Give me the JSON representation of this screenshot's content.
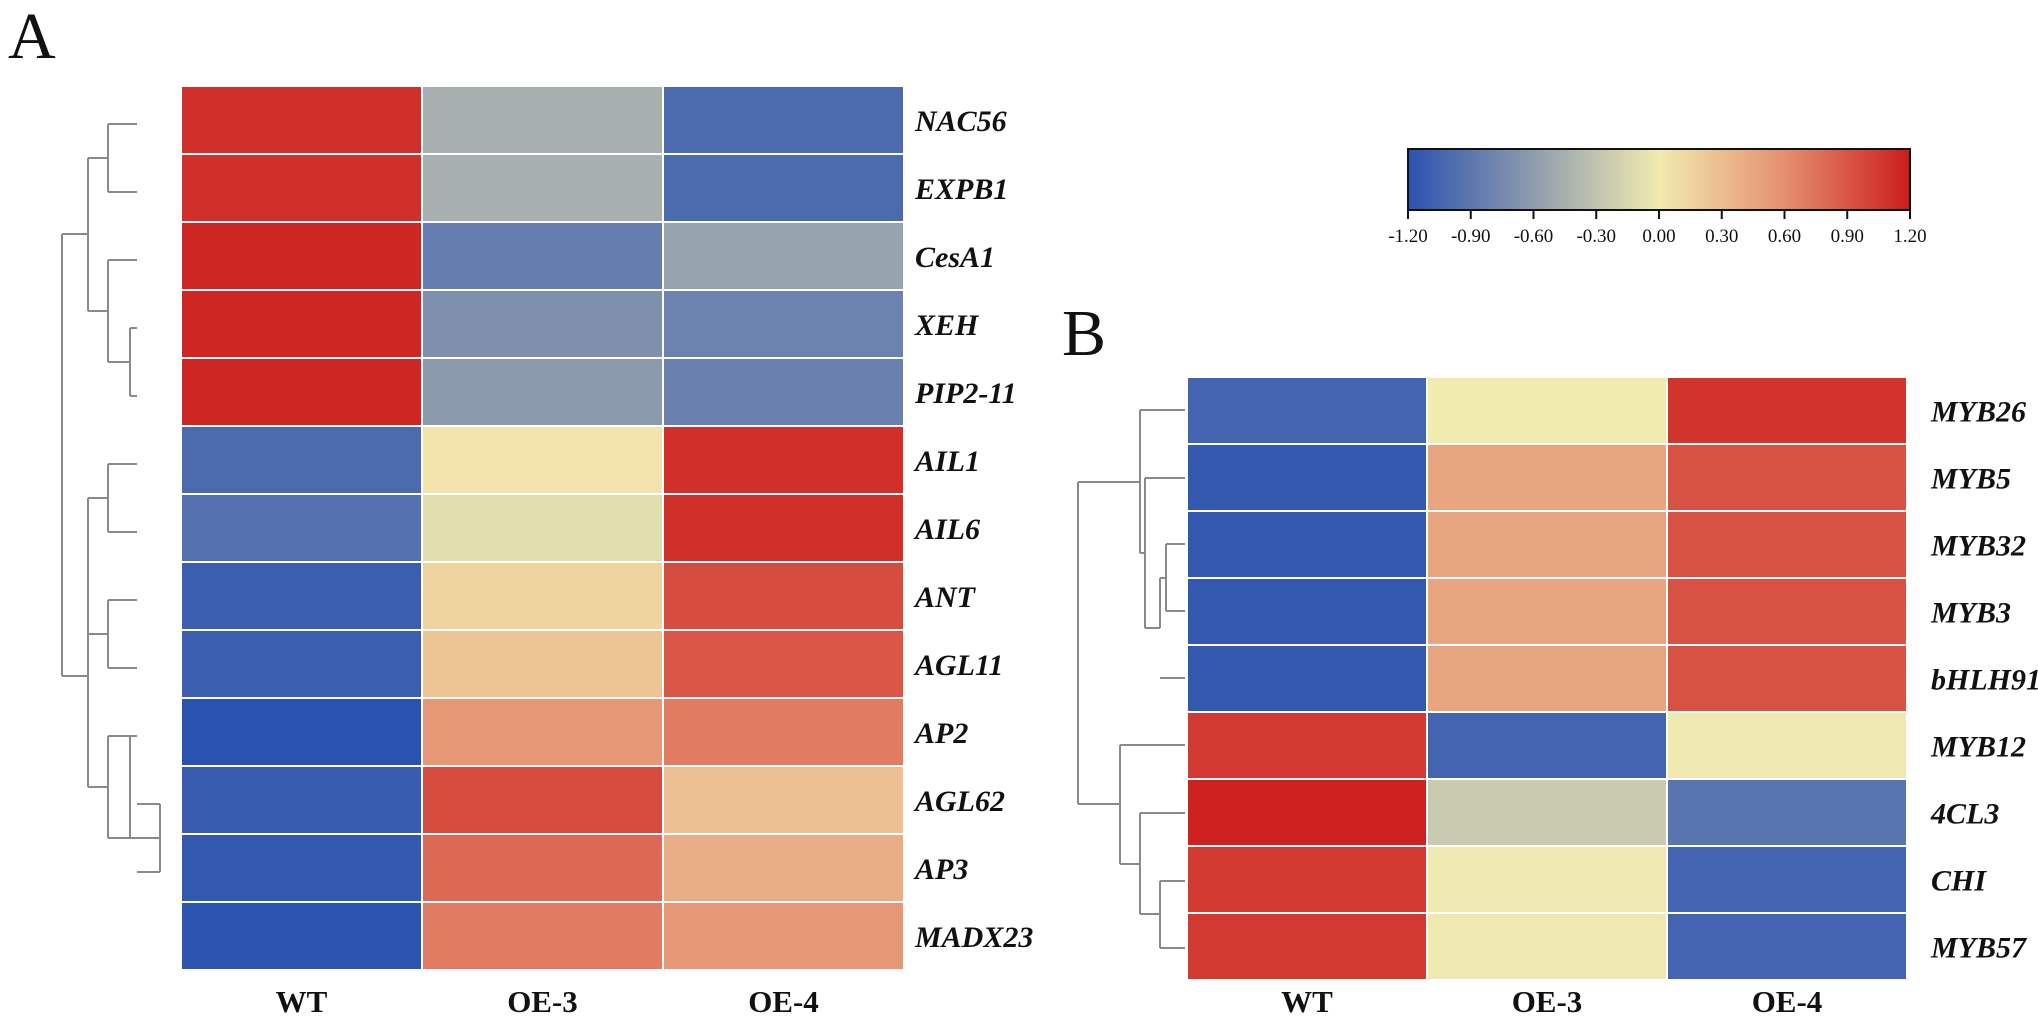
{
  "chart_data": [
    {
      "type": "heatmap",
      "panel": "A",
      "columns": [
        "WT",
        "OE-3",
        "OE-4"
      ],
      "rows": [
        "NAC56",
        "EXPB1",
        "CesA1",
        "XEH",
        "PIP2-11",
        "AIL1",
        "AIL6",
        "ANT",
        "AGL11",
        "AP2",
        "AGL62",
        "AP3",
        "MADX23"
      ],
      "values": [
        [
          1.1,
          -0.45,
          -1.0
        ],
        [
          1.1,
          -0.45,
          -1.0
        ],
        [
          1.15,
          -0.85,
          -0.55
        ],
        [
          1.15,
          -0.7,
          -0.8
        ],
        [
          1.15,
          -0.62,
          -0.82
        ],
        [
          -1.0,
          0.05,
          1.1
        ],
        [
          -0.95,
          -0.1,
          1.1
        ],
        [
          -1.1,
          0.15,
          0.95
        ],
        [
          -1.1,
          0.25,
          0.9
        ],
        [
          -1.2,
          0.55,
          0.7
        ],
        [
          -1.12,
          0.95,
          0.28
        ],
        [
          -1.15,
          0.8,
          0.4
        ],
        [
          -1.18,
          0.7,
          0.55
        ]
      ]
    },
    {
      "type": "heatmap",
      "panel": "B",
      "columns": [
        "WT",
        "OE-3",
        "OE-4"
      ],
      "rows": [
        "MYB26",
        "MYB5",
        "MYB32",
        "MYB3",
        "bHLH91",
        "MYB12",
        "4CL3",
        "CHI",
        "MYB57"
      ],
      "values": [
        [
          -1.05,
          0.0,
          1.08
        ],
        [
          -1.15,
          0.45,
          0.92
        ],
        [
          -1.15,
          0.45,
          0.92
        ],
        [
          -1.15,
          0.45,
          0.92
        ],
        [
          -1.15,
          0.45,
          0.92
        ],
        [
          1.05,
          -1.05,
          -0.02
        ],
        [
          1.18,
          -0.25,
          -0.92
        ],
        [
          1.05,
          -0.02,
          -1.05
        ],
        [
          1.05,
          -0.02,
          -1.05
        ]
      ]
    }
  ],
  "colorbar": {
    "range": [
      -1.2,
      1.2
    ],
    "ticks": [
      "-1.20",
      "-0.90",
      "-0.60",
      "-0.30",
      "0.00",
      "0.30",
      "0.60",
      "0.90",
      "1.20"
    ],
    "stops": [
      {
        "value": -1.2,
        "color": "#2a52b0"
      },
      {
        "value": -0.6,
        "color": "#8f9cae"
      },
      {
        "value": 0.0,
        "color": "#f2ebb0"
      },
      {
        "value": 0.6,
        "color": "#e58f70"
      },
      {
        "value": 1.2,
        "color": "#cc1c1c"
      }
    ]
  },
  "panel_labels": {
    "a": "A",
    "b": "B"
  }
}
